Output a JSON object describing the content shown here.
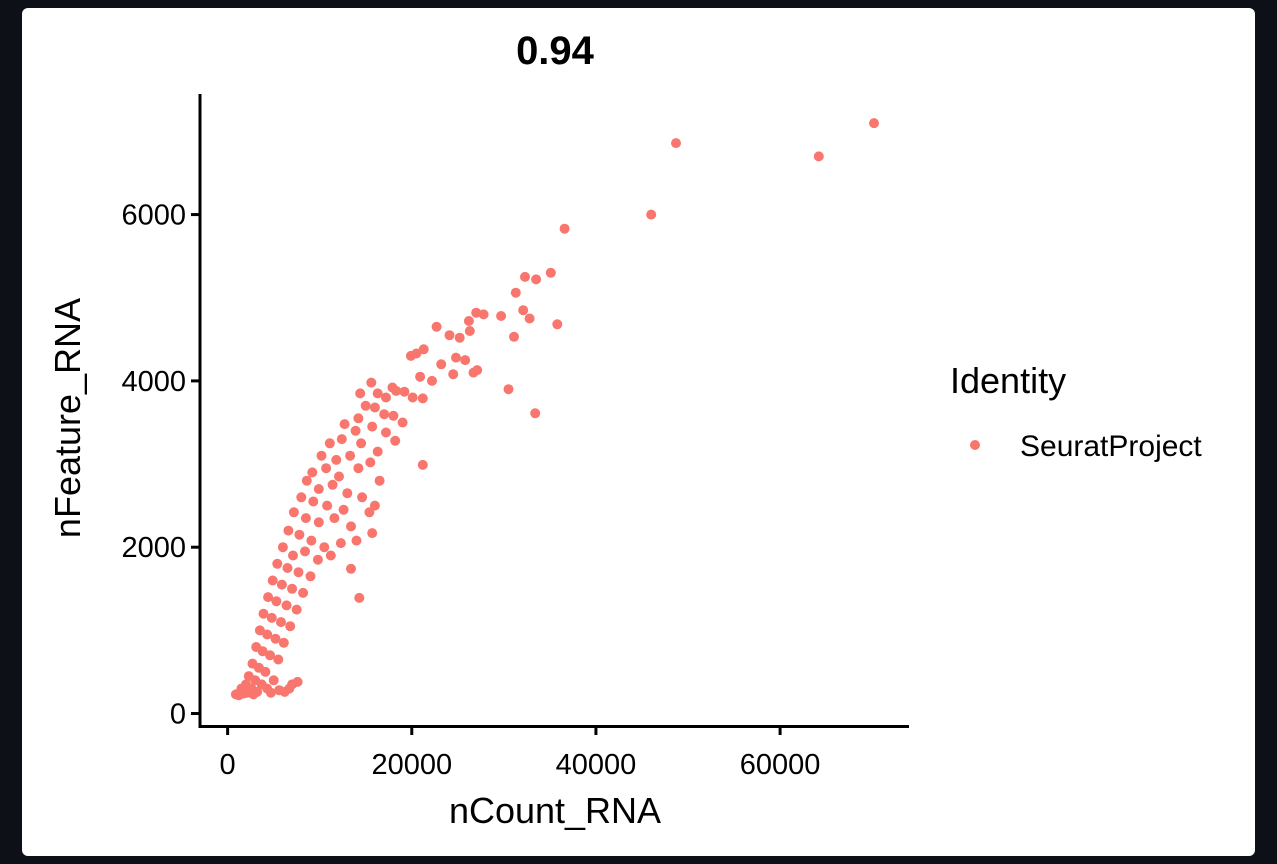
{
  "chart_data": {
    "type": "scatter",
    "title": "0.94",
    "xlabel": "nCount_RNA",
    "ylabel": "nFeature_RNA",
    "xlim": [
      -3000,
      74000
    ],
    "ylim": [
      -150,
      7450
    ],
    "x_ticks": [
      0,
      20000,
      40000,
      60000
    ],
    "y_ticks": [
      0,
      2000,
      4000,
      6000
    ],
    "x_tick_labels": [
      "0",
      "20000",
      "40000",
      "60000"
    ],
    "y_tick_labels": [
      "0",
      "2000",
      "4000",
      "6000"
    ],
    "grid": false,
    "legend": {
      "title": "Identity",
      "placement": "right",
      "entries": [
        {
          "label": "SeuratProject",
          "color": "#F8766D"
        }
      ]
    },
    "series": [
      {
        "name": "SeuratProject",
        "color": "#F8766D",
        "points": [
          [
            70200,
            7100
          ],
          [
            48700,
            6860
          ],
          [
            64200,
            6700
          ],
          [
            46000,
            6000
          ],
          [
            36600,
            5830
          ],
          [
            35100,
            5300
          ],
          [
            32300,
            5250
          ],
          [
            33500,
            5220
          ],
          [
            31300,
            5060
          ],
          [
            32100,
            4850
          ],
          [
            27000,
            4820
          ],
          [
            27800,
            4800
          ],
          [
            29700,
            4780
          ],
          [
            32800,
            4750
          ],
          [
            26200,
            4720
          ],
          [
            35800,
            4680
          ],
          [
            22700,
            4650
          ],
          [
            24100,
            4550
          ],
          [
            25200,
            4520
          ],
          [
            26300,
            4600
          ],
          [
            31100,
            4530
          ],
          [
            20500,
            4330
          ],
          [
            21300,
            4380
          ],
          [
            19900,
            4300
          ],
          [
            24800,
            4280
          ],
          [
            25800,
            4250
          ],
          [
            23200,
            4200
          ],
          [
            27100,
            4130
          ],
          [
            24500,
            4080
          ],
          [
            26700,
            4100
          ],
          [
            20900,
            4050
          ],
          [
            22200,
            4000
          ],
          [
            30500,
            3900
          ],
          [
            17900,
            3920
          ],
          [
            19200,
            3870
          ],
          [
            15600,
            3980
          ],
          [
            16300,
            3850
          ],
          [
            17200,
            3800
          ],
          [
            18300,
            3880
          ],
          [
            14400,
            3850
          ],
          [
            20100,
            3800
          ],
          [
            21200,
            3790
          ],
          [
            33400,
            3610
          ],
          [
            15000,
            3700
          ],
          [
            16000,
            3680
          ],
          [
            17000,
            3600
          ],
          [
            14200,
            3550
          ],
          [
            18000,
            3580
          ],
          [
            19000,
            3500
          ],
          [
            12700,
            3480
          ],
          [
            13900,
            3400
          ],
          [
            15700,
            3450
          ],
          [
            17200,
            3380
          ],
          [
            11100,
            3250
          ],
          [
            12400,
            3300
          ],
          [
            14500,
            3250
          ],
          [
            16300,
            3150
          ],
          [
            18200,
            3280
          ],
          [
            10200,
            3100
          ],
          [
            11800,
            3050
          ],
          [
            13300,
            3100
          ],
          [
            15500,
            3020
          ],
          [
            21200,
            2990
          ],
          [
            9200,
            2900
          ],
          [
            10700,
            2950
          ],
          [
            12100,
            2850
          ],
          [
            14200,
            2950
          ],
          [
            8600,
            2800
          ],
          [
            9900,
            2700
          ],
          [
            11400,
            2750
          ],
          [
            13000,
            2650
          ],
          [
            16500,
            2800
          ],
          [
            8000,
            2600
          ],
          [
            9300,
            2550
          ],
          [
            10800,
            2500
          ],
          [
            12600,
            2450
          ],
          [
            14600,
            2600
          ],
          [
            15400,
            2420
          ],
          [
            15700,
            2170
          ],
          [
            16000,
            2500
          ],
          [
            7200,
            2420
          ],
          [
            8500,
            2350
          ],
          [
            9900,
            2300
          ],
          [
            11600,
            2350
          ],
          [
            13400,
            2250
          ],
          [
            14000,
            2080
          ],
          [
            6600,
            2200
          ],
          [
            7800,
            2150
          ],
          [
            9100,
            2080
          ],
          [
            10500,
            2000
          ],
          [
            12300,
            2050
          ],
          [
            6000,
            2000
          ],
          [
            7100,
            1900
          ],
          [
            8400,
            1950
          ],
          [
            9800,
            1850
          ],
          [
            11200,
            1900
          ],
          [
            5400,
            1800
          ],
          [
            6500,
            1750
          ],
          [
            7700,
            1700
          ],
          [
            9000,
            1650
          ],
          [
            4900,
            1600
          ],
          [
            5900,
            1550
          ],
          [
            7000,
            1500
          ],
          [
            8200,
            1450
          ],
          [
            13400,
            1740
          ],
          [
            14300,
            1390
          ],
          [
            4400,
            1400
          ],
          [
            5300,
            1350
          ],
          [
            6400,
            1300
          ],
          [
            7500,
            1250
          ],
          [
            3900,
            1200
          ],
          [
            4800,
            1150
          ],
          [
            5800,
            1100
          ],
          [
            6800,
            1050
          ],
          [
            3500,
            1000
          ],
          [
            4300,
            950
          ],
          [
            5200,
            900
          ],
          [
            6100,
            850
          ],
          [
            3100,
            800
          ],
          [
            3800,
            750
          ],
          [
            4600,
            700
          ],
          [
            5500,
            650
          ],
          [
            2700,
            600
          ],
          [
            3400,
            550
          ],
          [
            4100,
            500
          ],
          [
            2300,
            450
          ],
          [
            3000,
            400
          ],
          [
            3700,
            350
          ],
          [
            2000,
            350
          ],
          [
            2600,
            300
          ],
          [
            1500,
            300
          ],
          [
            2100,
            250
          ],
          [
            1200,
            220
          ],
          [
            1700,
            240
          ],
          [
            900,
            230
          ],
          [
            7600,
            380
          ],
          [
            7000,
            350
          ],
          [
            5600,
            280
          ],
          [
            6200,
            260
          ],
          [
            4300,
            300
          ],
          [
            3200,
            260
          ],
          [
            2800,
            230
          ],
          [
            5000,
            400
          ],
          [
            4700,
            250
          ],
          [
            6700,
            300
          ]
        ]
      }
    ]
  }
}
